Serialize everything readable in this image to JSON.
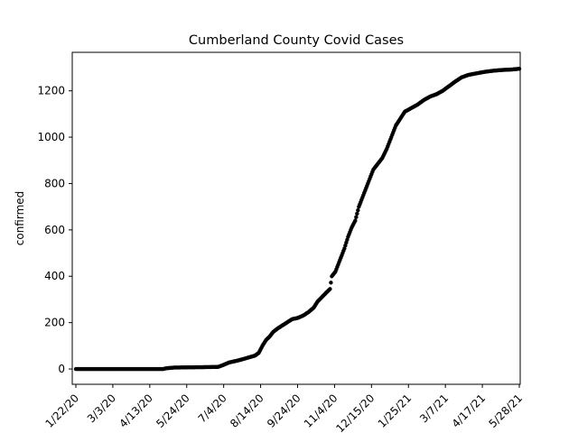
{
  "chart_data": {
    "type": "scatter",
    "title": "Cumberland County Covid Cases",
    "xlabel": "",
    "ylabel": "confirmed",
    "x_tick_labels": [
      "1/22/20",
      "3/3/20",
      "4/13/20",
      "5/24/20",
      "7/4/20",
      "8/14/20",
      "9/24/20",
      "11/4/20",
      "12/15/20",
      "1/25/21",
      "3/7/21",
      "4/17/21",
      "5/28/21"
    ],
    "y_ticks": [
      0,
      200,
      400,
      600,
      800,
      1000,
      1200
    ],
    "xlim": [
      "1/18/20",
      "5/29/21"
    ],
    "ylim": [
      -66,
      1366
    ],
    "grid": false,
    "marker_color": "#000000",
    "series": [
      {
        "points": [
          [
            "1/22/20",
            0
          ],
          [
            "3/3/20",
            0
          ],
          [
            "4/13/20",
            0
          ],
          [
            "4/28/20",
            0
          ],
          [
            "5/1/20",
            3
          ],
          [
            "5/10/20",
            6
          ],
          [
            "5/24/20",
            7
          ],
          [
            "6/14/20",
            8
          ],
          [
            "6/28/20",
            9
          ],
          [
            "7/4/20",
            18
          ],
          [
            "7/10/20",
            28
          ],
          [
            "7/18/20",
            35
          ],
          [
            "7/25/20",
            42
          ],
          [
            "8/1/20",
            50
          ],
          [
            "8/8/20",
            58
          ],
          [
            "8/12/20",
            70
          ],
          [
            "8/16/20",
            100
          ],
          [
            "8/20/20",
            125
          ],
          [
            "8/24/20",
            140
          ],
          [
            "8/28/20",
            160
          ],
          [
            "9/2/20",
            175
          ],
          [
            "9/8/20",
            190
          ],
          [
            "9/14/20",
            205
          ],
          [
            "9/18/20",
            215
          ],
          [
            "9/24/20",
            220
          ],
          [
            "9/30/20",
            230
          ],
          [
            "10/6/20",
            245
          ],
          [
            "10/12/20",
            265
          ],
          [
            "10/16/20",
            290
          ],
          [
            "10/21/20",
            310
          ],
          [
            "10/26/20",
            330
          ],
          [
            "10/30/20",
            345
          ],
          [
            "11/1/20",
            400
          ],
          [
            "11/5/20",
            420
          ],
          [
            "11/10/20",
            470
          ],
          [
            "11/15/20",
            520
          ],
          [
            "11/19/20",
            570
          ],
          [
            "11/23/20",
            610
          ],
          [
            "11/27/20",
            640
          ],
          [
            "12/1/20",
            700
          ],
          [
            "12/5/20",
            740
          ],
          [
            "12/9/20",
            780
          ],
          [
            "12/13/20",
            820
          ],
          [
            "12/17/20",
            860
          ],
          [
            "12/21/20",
            880
          ],
          [
            "12/27/20",
            910
          ],
          [
            "1/1/21",
            950
          ],
          [
            "1/6/21",
            1000
          ],
          [
            "1/11/21",
            1050
          ],
          [
            "1/16/21",
            1080
          ],
          [
            "1/21/21",
            1110
          ],
          [
            "1/28/21",
            1125
          ],
          [
            "2/4/21",
            1140
          ],
          [
            "2/11/21",
            1160
          ],
          [
            "2/18/21",
            1175
          ],
          [
            "2/25/21",
            1185
          ],
          [
            "3/4/21",
            1200
          ],
          [
            "3/11/21",
            1220
          ],
          [
            "3/18/21",
            1240
          ],
          [
            "3/25/21",
            1258
          ],
          [
            "4/1/21",
            1268
          ],
          [
            "4/10/21",
            1275
          ],
          [
            "4/20/21",
            1282
          ],
          [
            "4/30/21",
            1287
          ],
          [
            "5/10/21",
            1290
          ],
          [
            "5/20/21",
            1292
          ],
          [
            "5/28/21",
            1295
          ]
        ]
      }
    ]
  }
}
